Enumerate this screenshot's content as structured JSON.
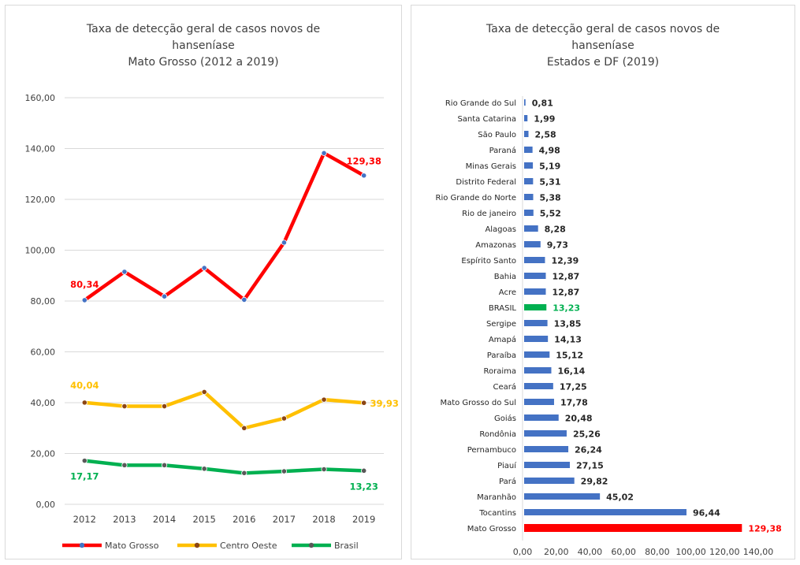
{
  "chart_data": [
    {
      "type": "line",
      "title": [
        "Taxa de detecção geral de casos novos de",
        "hanseníase",
        "Mato Grosso (2012 a 2019)"
      ],
      "x": [
        "2012",
        "2013",
        "2014",
        "2015",
        "2016",
        "2017",
        "2018",
        "2019"
      ],
      "ylim": [
        0,
        160
      ],
      "yticks": [
        "0,00",
        "20,00",
        "40,00",
        "60,00",
        "80,00",
        "100,00",
        "120,00",
        "140,00",
        "160,00"
      ],
      "grid": true,
      "legend_position": "bottom",
      "series": [
        {
          "name": "Mato Grosso",
          "color": "#ff0000",
          "marker_color": "#4472c4",
          "values": [
            80.34,
            91.5,
            81.8,
            93.0,
            80.5,
            103.0,
            138.2,
            129.38
          ],
          "labels": [
            {
              "index": 0,
              "text": "80,34"
            },
            {
              "index": 7,
              "text": "129,38"
            }
          ]
        },
        {
          "name": "Centro Oeste",
          "color": "#ffc000",
          "marker_color": "#8b4513",
          "values": [
            40.04,
            38.6,
            38.6,
            44.2,
            30.0,
            33.8,
            41.2,
            39.93
          ],
          "labels": [
            {
              "index": 0,
              "text": "40,04"
            },
            {
              "index": 7,
              "text": "39,93"
            }
          ]
        },
        {
          "name": "Brasil",
          "color": "#00b050",
          "marker_color": "#595959",
          "values": [
            17.17,
            15.4,
            15.4,
            14.0,
            12.3,
            13.0,
            13.8,
            13.23
          ],
          "labels": [
            {
              "index": 0,
              "text": "17,17"
            },
            {
              "index": 7,
              "text": "13,23"
            }
          ]
        }
      ]
    },
    {
      "type": "bar",
      "orientation": "horizontal",
      "title": [
        "Taxa de detecção geral de casos novos de",
        "hanseníase",
        "Estados e DF (2019)"
      ],
      "xlim": [
        0,
        140
      ],
      "xticks": [
        "0,00",
        "20,00",
        "40,00",
        "60,00",
        "80,00",
        "100,00",
        "120,00",
        "140,00"
      ],
      "bar_color": "#4472c4",
      "categories": [
        "Rio Grande do Sul",
        "Santa Catarina",
        "São Paulo",
        "Paraná",
        "Minas Gerais",
        "Distrito Federal",
        "Rio Grande do Norte",
        "Rio de janeiro",
        "Alagoas",
        "Amazonas",
        "Espírito Santo",
        "Bahia",
        "Acre",
        "BRASIL",
        "Sergipe",
        "Amapá",
        "Paraíba",
        "Roraima",
        "Ceará",
        "Mato Grosso do Sul",
        "Goiás",
        "Rondônia",
        "Pernambuco",
        "Piauí",
        "Pará",
        "Maranhão",
        "Tocantins",
        "Mato Grosso"
      ],
      "values": [
        0.81,
        1.99,
        2.58,
        4.98,
        5.19,
        5.31,
        5.38,
        5.52,
        8.28,
        9.73,
        12.39,
        12.87,
        12.87,
        13.23,
        13.85,
        14.13,
        15.12,
        16.14,
        17.25,
        17.78,
        20.48,
        25.26,
        26.24,
        27.15,
        29.82,
        45.02,
        96.44,
        129.38
      ],
      "value_labels": [
        "0,81",
        "1,99",
        "2,58",
        "4,98",
        "5,19",
        "5,31",
        "5,38",
        "5,52",
        "8,28",
        "9,73",
        "12,39",
        "12,87",
        "12,87",
        "13,23",
        "13,85",
        "14,13",
        "15,12",
        "16,14",
        "17,25",
        "17,78",
        "20,48",
        "25,26",
        "26,24",
        "27,15",
        "29,82",
        "45,02",
        "96,44",
        "129,38"
      ],
      "highlight": {
        "BRASIL": {
          "color": "#00b050",
          "label_color": "#00b050"
        },
        "Mato Grosso": {
          "color": "#ff0000",
          "label_color": "#ff0000"
        }
      }
    }
  ]
}
